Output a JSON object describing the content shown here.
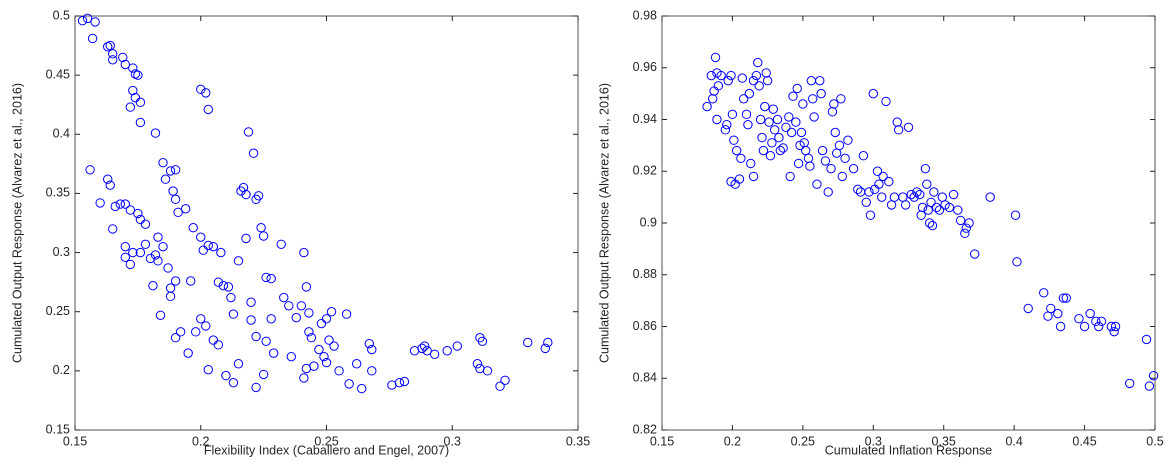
{
  "chart_data": [
    {
      "type": "scatter",
      "color": "#0000ff",
      "xlabel": "Flexibility Index (Caballero and Engel, 2007)",
      "ylabel": "Cumulated Output Response (Alvarez et al., 2016)",
      "xlim": [
        0.15,
        0.35
      ],
      "ylim": [
        0.15,
        0.5
      ],
      "xticks": [
        0.15,
        0.2,
        0.25,
        0.3,
        0.35
      ],
      "yticks": [
        0.15,
        0.2,
        0.25,
        0.3,
        0.35,
        0.4,
        0.45,
        0.5
      ],
      "x": [
        0.155,
        0.158,
        0.153,
        0.157,
        0.163,
        0.164,
        0.165,
        0.165,
        0.169,
        0.17,
        0.173,
        0.174,
        0.175,
        0.173,
        0.174,
        0.176,
        0.172,
        0.176,
        0.156,
        0.163,
        0.164,
        0.16,
        0.166,
        0.168,
        0.17,
        0.172,
        0.175,
        0.176,
        0.178,
        0.165,
        0.17,
        0.173,
        0.176,
        0.178,
        0.172,
        0.17,
        0.18,
        0.182,
        0.183,
        0.183,
        0.182,
        0.185,
        0.186,
        0.188,
        0.19,
        0.189,
        0.19,
        0.191,
        0.194,
        0.185,
        0.187,
        0.188,
        0.188,
        0.19,
        0.181,
        0.184,
        0.19,
        0.192,
        0.195,
        0.196,
        0.198,
        0.197,
        0.2,
        0.201,
        0.203,
        0.2,
        0.202,
        0.203,
        0.2,
        0.202,
        0.205,
        0.207,
        0.203,
        0.205,
        0.207,
        0.209,
        0.208,
        0.211,
        0.212,
        0.213,
        0.21,
        0.213,
        0.215,
        0.215,
        0.216,
        0.217,
        0.218,
        0.219,
        0.221,
        0.222,
        0.223,
        0.218,
        0.22,
        0.22,
        0.222,
        0.224,
        0.225,
        0.226,
        0.228,
        0.222,
        0.225,
        0.226,
        0.228,
        0.229,
        0.232,
        0.233,
        0.235,
        0.236,
        0.238,
        0.24,
        0.241,
        0.242,
        0.243,
        0.243,
        0.244,
        0.242,
        0.241,
        0.245,
        0.247,
        0.248,
        0.249,
        0.25,
        0.25,
        0.252,
        0.251,
        0.253,
        0.255,
        0.258,
        0.259,
        0.262,
        0.264,
        0.267,
        0.268,
        0.268,
        0.276,
        0.279,
        0.281,
        0.285,
        0.288,
        0.289,
        0.29,
        0.293,
        0.298,
        0.302,
        0.311,
        0.312,
        0.31,
        0.311,
        0.314,
        0.319,
        0.321,
        0.33,
        0.337,
        0.338
      ],
      "values": [
        0.498,
        0.495,
        0.496,
        0.481,
        0.474,
        0.475,
        0.468,
        0.463,
        0.465,
        0.459,
        0.456,
        0.451,
        0.45,
        0.437,
        0.431,
        0.427,
        0.423,
        0.41,
        0.37,
        0.362,
        0.357,
        0.342,
        0.339,
        0.341,
        0.341,
        0.336,
        0.333,
        0.328,
        0.324,
        0.32,
        0.305,
        0.3,
        0.3,
        0.307,
        0.29,
        0.296,
        0.295,
        0.298,
        0.293,
        0.313,
        0.401,
        0.376,
        0.362,
        0.369,
        0.37,
        0.352,
        0.345,
        0.334,
        0.337,
        0.305,
        0.287,
        0.27,
        0.263,
        0.276,
        0.272,
        0.247,
        0.228,
        0.233,
        0.215,
        0.276,
        0.233,
        0.321,
        0.313,
        0.302,
        0.306,
        0.438,
        0.435,
        0.421,
        0.244,
        0.238,
        0.226,
        0.222,
        0.201,
        0.305,
        0.275,
        0.272,
        0.3,
        0.271,
        0.262,
        0.248,
        0.196,
        0.19,
        0.206,
        0.293,
        0.352,
        0.355,
        0.349,
        0.402,
        0.384,
        0.345,
        0.348,
        0.312,
        0.258,
        0.243,
        0.229,
        0.321,
        0.314,
        0.279,
        0.278,
        0.186,
        0.197,
        0.225,
        0.244,
        0.215,
        0.307,
        0.262,
        0.255,
        0.212,
        0.245,
        0.255,
        0.3,
        0.271,
        0.249,
        0.233,
        0.228,
        0.202,
        0.194,
        0.204,
        0.218,
        0.24,
        0.212,
        0.207,
        0.244,
        0.25,
        0.226,
        0.221,
        0.2,
        0.248,
        0.189,
        0.206,
        0.185,
        0.223,
        0.218,
        0.2,
        0.188,
        0.19,
        0.191,
        0.217,
        0.219,
        0.221,
        0.217,
        0.214,
        0.217,
        0.221,
        0.228,
        0.225,
        0.206,
        0.202,
        0.2,
        0.187,
        0.192,
        0.224,
        0.219,
        0.224
      ]
    },
    {
      "type": "scatter",
      "color": "#0000ff",
      "xlabel": "Cumulated Inflation Response",
      "ylabel": "Cumulated Output Response (Alvarez et al., 2016)",
      "xlim": [
        0.15,
        0.5
      ],
      "ylim": [
        0.82,
        0.98
      ],
      "xticks": [
        0.15,
        0.2,
        0.25,
        0.3,
        0.35,
        0.4,
        0.45,
        0.5
      ],
      "yticks": [
        0.82,
        0.84,
        0.86,
        0.88,
        0.9,
        0.92,
        0.94,
        0.96,
        0.98
      ],
      "x": [
        0.182,
        0.185,
        0.186,
        0.187,
        0.188,
        0.189,
        0.19,
        0.189,
        0.192,
        0.195,
        0.196,
        0.197,
        0.199,
        0.2,
        0.201,
        0.199,
        0.202,
        0.203,
        0.205,
        0.206,
        0.207,
        0.208,
        0.21,
        0.211,
        0.212,
        0.213,
        0.215,
        0.215,
        0.217,
        0.218,
        0.219,
        0.22,
        0.221,
        0.222,
        0.223,
        0.224,
        0.225,
        0.226,
        0.227,
        0.228,
        0.229,
        0.23,
        0.232,
        0.233,
        0.234,
        0.236,
        0.238,
        0.24,
        0.241,
        0.242,
        0.243,
        0.245,
        0.246,
        0.247,
        0.248,
        0.249,
        0.25,
        0.251,
        0.252,
        0.254,
        0.255,
        0.256,
        0.257,
        0.258,
        0.26,
        0.262,
        0.263,
        0.264,
        0.266,
        0.268,
        0.27,
        0.271,
        0.272,
        0.273,
        0.274,
        0.276,
        0.277,
        0.278,
        0.28,
        0.282,
        0.286,
        0.289,
        0.291,
        0.293,
        0.295,
        0.297,
        0.298,
        0.3,
        0.301,
        0.303,
        0.304,
        0.306,
        0.307,
        0.309,
        0.311,
        0.313,
        0.315,
        0.317,
        0.318,
        0.321,
        0.323,
        0.325,
        0.327,
        0.329,
        0.331,
        0.333,
        0.334,
        0.335,
        0.337,
        0.338,
        0.339,
        0.34,
        0.341,
        0.342,
        0.343,
        0.345,
        0.347,
        0.349,
        0.351,
        0.354,
        0.357,
        0.36,
        0.362,
        0.365,
        0.366,
        0.368,
        0.372,
        0.383,
        0.401,
        0.402,
        0.41,
        0.421,
        0.424,
        0.426,
        0.431,
        0.433,
        0.435,
        0.437,
        0.446,
        0.45,
        0.454,
        0.458,
        0.46,
        0.462,
        0.469,
        0.471,
        0.472,
        0.482,
        0.494,
        0.496,
        0.499
      ],
      "values": [
        0.945,
        0.957,
        0.948,
        0.951,
        0.964,
        0.958,
        0.953,
        0.94,
        0.957,
        0.936,
        0.938,
        0.955,
        0.957,
        0.942,
        0.932,
        0.916,
        0.915,
        0.928,
        0.917,
        0.925,
        0.956,
        0.948,
        0.942,
        0.938,
        0.95,
        0.923,
        0.918,
        0.955,
        0.957,
        0.962,
        0.953,
        0.94,
        0.933,
        0.928,
        0.945,
        0.958,
        0.955,
        0.939,
        0.926,
        0.931,
        0.944,
        0.936,
        0.94,
        0.933,
        0.928,
        0.929,
        0.937,
        0.941,
        0.918,
        0.935,
        0.949,
        0.939,
        0.952,
        0.923,
        0.93,
        0.935,
        0.946,
        0.931,
        0.928,
        0.925,
        0.922,
        0.955,
        0.948,
        0.941,
        0.915,
        0.955,
        0.95,
        0.928,
        0.924,
        0.912,
        0.921,
        0.943,
        0.946,
        0.935,
        0.927,
        0.93,
        0.948,
        0.918,
        0.925,
        0.932,
        0.921,
        0.913,
        0.912,
        0.926,
        0.908,
        0.912,
        0.903,
        0.95,
        0.913,
        0.92,
        0.915,
        0.91,
        0.918,
        0.947,
        0.916,
        0.907,
        0.91,
        0.939,
        0.936,
        0.91,
        0.907,
        0.937,
        0.911,
        0.91,
        0.912,
        0.911,
        0.903,
        0.906,
        0.921,
        0.915,
        0.905,
        0.9,
        0.908,
        0.899,
        0.912,
        0.906,
        0.905,
        0.91,
        0.907,
        0.906,
        0.911,
        0.905,
        0.901,
        0.896,
        0.898,
        0.9,
        0.888,
        0.91,
        0.903,
        0.885,
        0.867,
        0.873,
        0.864,
        0.867,
        0.865,
        0.86,
        0.871,
        0.871,
        0.863,
        0.86,
        0.865,
        0.862,
        0.86,
        0.862,
        0.86,
        0.858,
        0.86,
        0.838,
        0.855,
        0.837,
        0.841
      ]
    }
  ]
}
